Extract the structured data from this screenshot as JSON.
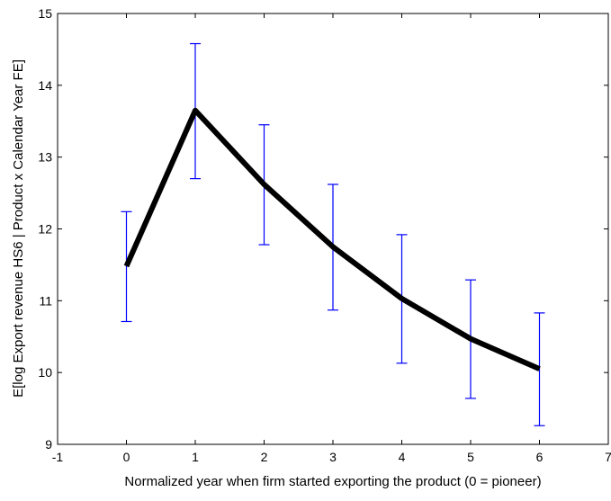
{
  "chart_data": {
    "type": "line",
    "xlabel": "Normalized year when firm started exporting the product (0 = pioneer)",
    "ylabel": "E[log Export revenue HS6 | Product x Calendar Year FE]",
    "xlim": [
      -1,
      7
    ],
    "ylim": [
      9,
      15
    ],
    "xticks": [
      "-1",
      "0",
      "1",
      "2",
      "3",
      "4",
      "5",
      "6",
      "7"
    ],
    "yticks": [
      "9",
      "10",
      "11",
      "12",
      "13",
      "14",
      "15"
    ],
    "grid": false,
    "legend": "none",
    "series": [
      {
        "x": [
          0,
          1,
          2,
          3,
          4,
          5,
          6
        ],
        "y": [
          11.48,
          13.65,
          12.62,
          11.75,
          11.03,
          10.47,
          10.05
        ],
        "err_low": [
          10.71,
          12.7,
          11.78,
          10.87,
          10.13,
          9.64,
          9.26
        ],
        "err_high": [
          12.24,
          14.58,
          13.45,
          12.62,
          11.92,
          11.29,
          10.83
        ],
        "color": "#000000",
        "error_color": "#0000ff"
      }
    ]
  }
}
